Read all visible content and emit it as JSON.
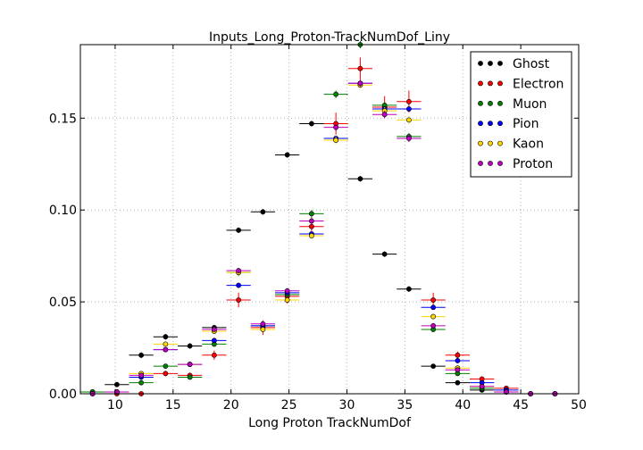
{
  "chart_data": {
    "type": "scatter",
    "title": "Inputs_Long_Proton-TrackNumDof_Liny",
    "xlabel": "Long Proton TrackNumDof",
    "ylabel": "",
    "xlim": [
      7,
      50
    ],
    "ylim": [
      0,
      0.19
    ],
    "xticks": [
      10,
      15,
      20,
      25,
      30,
      35,
      40,
      45,
      50
    ],
    "yticks": [
      0.0,
      0.05,
      0.1,
      0.15
    ],
    "ytick_labels": [
      "0.00",
      "0.05",
      "0.10",
      "0.15"
    ],
    "grid": true,
    "legend_position": "top-right",
    "bin_half_width": 1.05,
    "x": [
      8.05,
      10.15,
      12.25,
      14.35,
      16.45,
      18.55,
      20.65,
      22.75,
      24.85,
      26.95,
      29.05,
      31.15,
      33.25,
      35.35,
      37.45,
      39.55,
      41.65,
      43.75,
      45.85,
      47.95
    ],
    "series": [
      {
        "name": "Ghost",
        "color": "#000000",
        "values": [
          0.001,
          0.005,
          0.021,
          0.031,
          0.026,
          0.036,
          0.089,
          0.099,
          0.13,
          0.147,
          0.138,
          0.117,
          0.076,
          0.057,
          0.015,
          0.006,
          0.002,
          0.001,
          0.0,
          0.0
        ],
        "errors": [
          0.0005,
          0.0008,
          0.0015,
          0.0015,
          0.0015,
          0.0015,
          0.0015,
          0.0015,
          0.0015,
          0.0015,
          0.0015,
          0.0015,
          0.0015,
          0.0015,
          0.001,
          0.0008,
          0.0005,
          0.0005,
          0.0,
          0.0
        ]
      },
      {
        "name": "Electron",
        "color": "#ff0000",
        "values": [
          0.0,
          0.0,
          0.0,
          0.011,
          0.01,
          0.021,
          0.051,
          0.036,
          0.053,
          0.091,
          0.147,
          0.177,
          0.156,
          0.159,
          0.051,
          0.021,
          0.008,
          0.003,
          0.0,
          0.0
        ],
        "errors": [
          0.0,
          0.0,
          0.0,
          0.0015,
          0.0015,
          0.0025,
          0.004,
          0.004,
          0.004,
          0.005,
          0.006,
          0.006,
          0.006,
          0.006,
          0.004,
          0.002,
          0.0015,
          0.001,
          0.0,
          0.0
        ]
      },
      {
        "name": "Muon",
        "color": "#008000",
        "values": [
          0.001,
          0.001,
          0.006,
          0.015,
          0.009,
          0.027,
          0.066,
          0.037,
          0.054,
          0.098,
          0.163,
          0.19,
          0.157,
          0.14,
          0.035,
          0.011,
          0.003,
          0.001,
          0.0,
          0.0
        ],
        "errors": [
          0.0003,
          0.0003,
          0.001,
          0.001,
          0.001,
          0.0015,
          0.002,
          0.002,
          0.002,
          0.002,
          0.002,
          0.002,
          0.002,
          0.002,
          0.0015,
          0.001,
          0.0005,
          0.0003,
          0.0,
          0.0
        ]
      },
      {
        "name": "Pion",
        "color": "#0000ff",
        "values": [
          0.0,
          0.001,
          0.009,
          0.024,
          0.016,
          0.029,
          0.059,
          0.037,
          0.055,
          0.087,
          0.139,
          0.169,
          0.155,
          0.155,
          0.047,
          0.018,
          0.006,
          0.002,
          0.0,
          0.0
        ],
        "errors": [
          0.0,
          0.0003,
          0.0005,
          0.0005,
          0.0005,
          0.0005,
          0.0005,
          0.0005,
          0.0005,
          0.0005,
          0.0005,
          0.0005,
          0.0005,
          0.0005,
          0.0005,
          0.0005,
          0.0003,
          0.0003,
          0.0,
          0.0
        ]
      },
      {
        "name": "Kaon",
        "color": "#ffd700",
        "values": [
          0.0,
          0.001,
          0.011,
          0.027,
          0.016,
          0.034,
          0.066,
          0.035,
          0.051,
          0.086,
          0.138,
          0.168,
          0.154,
          0.149,
          0.042,
          0.014,
          0.004,
          0.001,
          0.0,
          0.0
        ],
        "errors": [
          0.0,
          0.0003,
          0.0008,
          0.001,
          0.001,
          0.001,
          0.0015,
          0.001,
          0.0015,
          0.0015,
          0.002,
          0.002,
          0.002,
          0.002,
          0.0015,
          0.001,
          0.0005,
          0.0003,
          0.0,
          0.0
        ]
      },
      {
        "name": "Proton",
        "color": "#bf00bf",
        "values": [
          0.0,
          0.001,
          0.01,
          0.024,
          0.016,
          0.035,
          0.067,
          0.038,
          0.056,
          0.094,
          0.145,
          0.169,
          0.152,
          0.139,
          0.037,
          0.013,
          0.004,
          0.001,
          0.0,
          0.0
        ],
        "errors": [
          0.0,
          0.0003,
          0.0008,
          0.001,
          0.001,
          0.001,
          0.0015,
          0.001,
          0.0015,
          0.0015,
          0.002,
          0.002,
          0.002,
          0.002,
          0.0015,
          0.001,
          0.0005,
          0.0003,
          0.0,
          0.0
        ]
      }
    ]
  }
}
